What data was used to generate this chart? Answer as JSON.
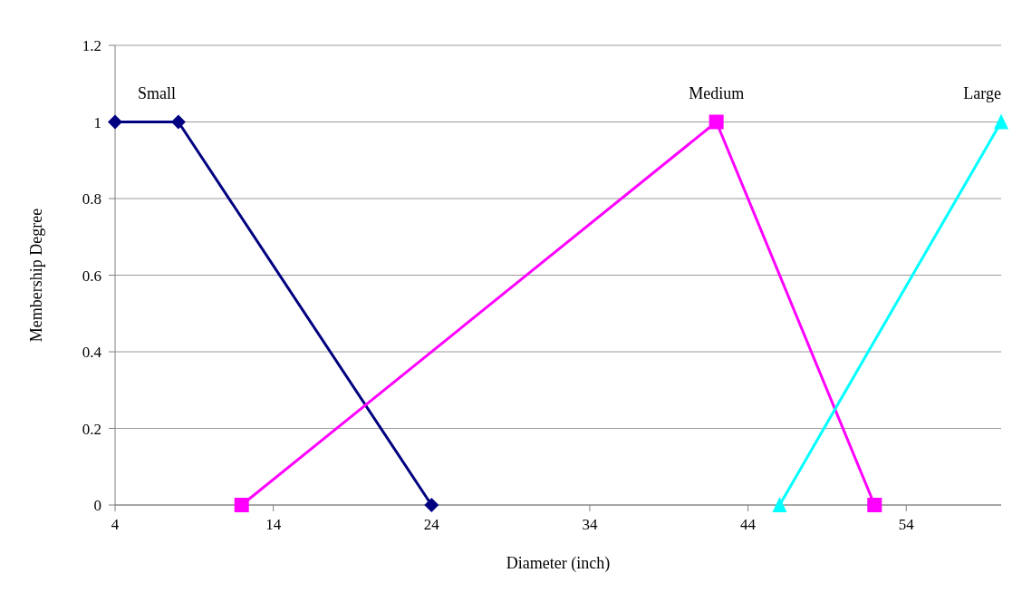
{
  "chart_data": {
    "type": "line",
    "xlabel": "Diameter (inch)",
    "ylabel": "Membership Degree",
    "xlim": [
      4,
      60
    ],
    "xticks": [
      4,
      14,
      24,
      34,
      44,
      54
    ],
    "ylim": [
      0,
      1.2
    ],
    "yticks": [
      0,
      {
        "value": 0.2,
        "label": "0.2"
      },
      {
        "value": 0.4,
        "label": "0.4"
      },
      {
        "value": 0.6,
        "label": "0.6"
      },
      {
        "value": 0.8,
        "label": "0.8"
      },
      1,
      {
        "value": 1.2,
        "label": "1.2"
      }
    ],
    "grid": "y",
    "legend": false,
    "series": [
      {
        "name": "Small",
        "color": "#000080",
        "marker": "diamond",
        "x": [
          4,
          8,
          24
        ],
        "values": [
          1,
          1,
          0
        ]
      },
      {
        "name": "Medium",
        "color": "#ff00ff",
        "marker": "square",
        "x": [
          12,
          42,
          52
        ],
        "values": [
          0,
          1,
          0
        ]
      },
      {
        "name": "Large",
        "color": "#00ffff",
        "marker": "triangle",
        "x": [
          46,
          60
        ],
        "values": [
          0,
          1
        ]
      }
    ]
  }
}
